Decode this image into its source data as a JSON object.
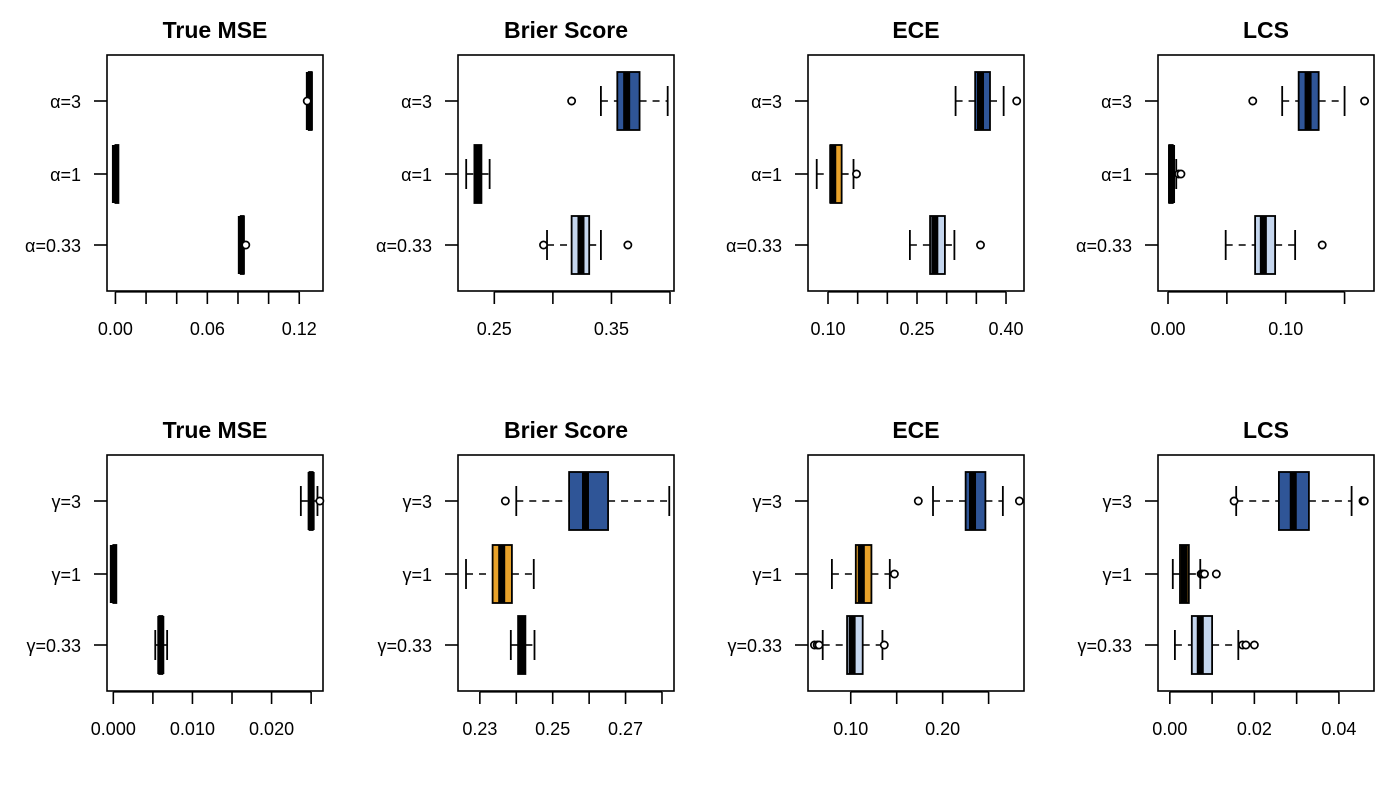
{
  "colors": {
    "high": "#2F5597",
    "mid": "#E8A22A",
    "low": "#C5D6EE",
    "line": "#000000"
  },
  "chart_data": [
    {
      "type": "boxplot",
      "orientation": "horizontal",
      "title": "True MSE",
      "categories": [
        "α=3",
        "α=1",
        "α=0.33"
      ],
      "xlim": [
        -0.0055,
        0.1355
      ],
      "ticks": [
        0.0,
        0.02,
        0.04,
        0.06,
        0.08,
        0.1,
        0.12
      ],
      "tick_labels": [
        "0.00",
        "",
        "",
        "0.06",
        "",
        "",
        "0.12"
      ],
      "boxes": [
        {
          "fill": "high",
          "whislo": 0.1255,
          "q1": 0.1262,
          "med": 0.1266,
          "q3": 0.127,
          "whishi": 0.1276,
          "outliers": [
            0.1252
          ]
        },
        {
          "fill": "mid",
          "whislo": 0.0,
          "q1": 0.0,
          "med": 0.0,
          "q3": 0.0,
          "whishi": 0.0,
          "outliers": []
        },
        {
          "fill": "low",
          "whislo": 0.0815,
          "q1": 0.0818,
          "med": 0.0822,
          "q3": 0.0826,
          "whishi": 0.083,
          "outliers": [
            0.0851
          ]
        }
      ]
    },
    {
      "type": "boxplot",
      "orientation": "horizontal",
      "title": "Brier Score",
      "categories": [
        "α=3",
        "α=1",
        "α=0.33"
      ],
      "xlim": [
        0.219,
        0.4034
      ],
      "ticks": [
        0.25,
        0.3,
        0.35,
        0.4
      ],
      "tick_labels": [
        "0.25",
        "",
        "0.35",
        ""
      ],
      "boxes": [
        {
          "fill": "high",
          "whislo": 0.341,
          "q1": 0.355,
          "med": 0.363,
          "q3": 0.374,
          "whishi": 0.398,
          "outliers": [
            0.316
          ]
        },
        {
          "fill": "mid",
          "whislo": 0.226,
          "q1": 0.233,
          "med": 0.236,
          "q3": 0.239,
          "whishi": 0.246,
          "outliers": []
        },
        {
          "fill": "low",
          "whislo": 0.295,
          "q1": 0.316,
          "med": 0.324,
          "q3": 0.331,
          "whishi": 0.341,
          "outliers": [
            0.292,
            0.364
          ]
        }
      ]
    },
    {
      "type": "boxplot",
      "orientation": "horizontal",
      "title": "ECE",
      "categories": [
        "α=3",
        "α=1",
        "α=0.33"
      ],
      "xlim": [
        0.0663,
        0.4303
      ],
      "ticks": [
        0.1,
        0.15,
        0.2,
        0.25,
        0.3,
        0.35,
        0.4
      ],
      "tick_labels": [
        "0.10",
        "",
        "",
        "0.25",
        "",
        "",
        "0.40"
      ],
      "boxes": [
        {
          "fill": "high",
          "whislo": 0.315,
          "q1": 0.348,
          "med": 0.357,
          "q3": 0.373,
          "whishi": 0.396,
          "outliers": [
            0.418
          ]
        },
        {
          "fill": "mid",
          "whislo": 0.081,
          "q1": 0.104,
          "med": 0.108,
          "q3": 0.123,
          "whishi": 0.143,
          "outliers": [
            0.148
          ]
        },
        {
          "fill": "low",
          "whislo": 0.238,
          "q1": 0.272,
          "med": 0.28,
          "q3": 0.297,
          "whishi": 0.313,
          "outliers": [
            0.357
          ]
        }
      ]
    },
    {
      "type": "boxplot",
      "orientation": "horizontal",
      "title": "LCS",
      "categories": [
        "α=3",
        "α=1",
        "α=0.33"
      ],
      "xlim": [
        -0.0085,
        0.175
      ],
      "ticks": [
        0.0,
        0.05,
        0.1,
        0.15
      ],
      "tick_labels": [
        "0.00",
        "",
        "0.10",
        ""
      ],
      "boxes": [
        {
          "fill": "high",
          "whislo": 0.097,
          "q1": 0.111,
          "med": 0.119,
          "q3": 0.128,
          "whishi": 0.15,
          "outliers": [
            0.072,
            0.167
          ]
        },
        {
          "fill": "mid",
          "whislo": 0.001,
          "q1": 0.001,
          "med": 0.003,
          "q3": 0.004,
          "whishi": 0.007,
          "outliers": [
            0.009,
            0.011
          ]
        },
        {
          "fill": "low",
          "whislo": 0.049,
          "q1": 0.074,
          "med": 0.081,
          "q3": 0.091,
          "whishi": 0.108,
          "outliers": [
            0.131
          ]
        }
      ]
    },
    {
      "type": "boxplot",
      "orientation": "horizontal",
      "title": "True MSE",
      "categories": [
        "γ=3",
        "γ=1",
        "γ=0.33"
      ],
      "xlim": [
        -0.0008,
        0.0265
      ],
      "ticks": [
        0.0,
        0.005,
        0.01,
        0.015,
        0.02,
        0.025
      ],
      "tick_labels": [
        "0.000",
        "",
        "0.010",
        "",
        "0.020",
        ""
      ],
      "boxes": [
        {
          "fill": "high",
          "whislo": 0.0237,
          "q1": 0.0248,
          "med": 0.025,
          "q3": 0.0252,
          "whishi": 0.0258,
          "outliers": [
            0.0261
          ]
        },
        {
          "fill": "mid",
          "whislo": 0.0,
          "q1": 0.0,
          "med": 0.0,
          "q3": 0.0,
          "whishi": 0.0,
          "outliers": []
        },
        {
          "fill": "low",
          "whislo": 0.0053,
          "q1": 0.0058,
          "med": 0.006,
          "q3": 0.0062,
          "whishi": 0.0068,
          "outliers": []
        }
      ]
    },
    {
      "type": "boxplot",
      "orientation": "horizontal",
      "title": "Brier Score",
      "categories": [
        "γ=3",
        "γ=1",
        "γ=0.33"
      ],
      "xlim": [
        0.224,
        0.2833
      ],
      "ticks": [
        0.23,
        0.24,
        0.25,
        0.26,
        0.27,
        0.28
      ],
      "tick_labels": [
        "0.23",
        "",
        "0.25",
        "",
        "0.27",
        ""
      ],
      "boxes": [
        {
          "fill": "high",
          "whislo": 0.24,
          "q1": 0.2545,
          "med": 0.259,
          "q3": 0.2652,
          "whishi": 0.282,
          "outliers": [
            0.237
          ]
        },
        {
          "fill": "mid",
          "whislo": 0.2262,
          "q1": 0.2335,
          "med": 0.236,
          "q3": 0.2388,
          "whishi": 0.2448,
          "outliers": []
        },
        {
          "fill": "low",
          "whislo": 0.2385,
          "q1": 0.2405,
          "med": 0.2415,
          "q3": 0.2425,
          "whishi": 0.245,
          "outliers": []
        }
      ]
    },
    {
      "type": "boxplot",
      "orientation": "horizontal",
      "title": "ECE",
      "categories": [
        "γ=3",
        "γ=1",
        "γ=0.33"
      ],
      "xlim": [
        0.0535,
        0.2885
      ],
      "ticks": [
        0.1,
        0.15,
        0.2,
        0.25
      ],
      "tick_labels": [
        "0.10",
        "",
        "0.20",
        ""
      ],
      "boxes": [
        {
          "fill": "high",
          "whislo": 0.1895,
          "q1": 0.225,
          "med": 0.2325,
          "q3": 0.2465,
          "whishi": 0.2655,
          "outliers": [
            0.1735,
            0.2835
          ]
        },
        {
          "fill": "mid",
          "whislo": 0.0795,
          "q1": 0.1055,
          "med": 0.1115,
          "q3": 0.1225,
          "whishi": 0.1425,
          "outliers": [
            0.1475
          ]
        },
        {
          "fill": "low",
          "whislo": 0.0695,
          "q1": 0.096,
          "med": 0.1015,
          "q3": 0.113,
          "whishi": 0.1345,
          "outliers": [
            0.0605,
            0.0635,
            0.0655,
            0.1365
          ]
        }
      ]
    },
    {
      "type": "boxplot",
      "orientation": "horizontal",
      "title": "LCS",
      "categories": [
        "γ=3",
        "γ=1",
        "γ=0.33"
      ],
      "xlim": [
        -0.0028,
        0.0483
      ],
      "ticks": [
        0.0,
        0.01,
        0.02,
        0.03,
        0.04
      ],
      "tick_labels": [
        "0.00",
        "",
        "0.02",
        "",
        "0.04"
      ],
      "boxes": [
        {
          "fill": "high",
          "whislo": 0.0157,
          "q1": 0.0258,
          "med": 0.0292,
          "q3": 0.0329,
          "whishi": 0.043,
          "outliers": [
            0.0152,
            0.0457,
            0.046
          ]
        },
        {
          "fill": "mid",
          "whislo": 0.0007,
          "q1": 0.0024,
          "med": 0.0034,
          "q3": 0.0045,
          "whishi": 0.0072,
          "outliers": [
            0.0074,
            0.0078,
            0.0082,
            0.011
          ]
        },
        {
          "fill": "low",
          "whislo": 0.0012,
          "q1": 0.0052,
          "med": 0.0072,
          "q3": 0.01,
          "whishi": 0.0162,
          "outliers": [
            0.0172,
            0.018,
            0.02
          ]
        }
      ]
    }
  ]
}
